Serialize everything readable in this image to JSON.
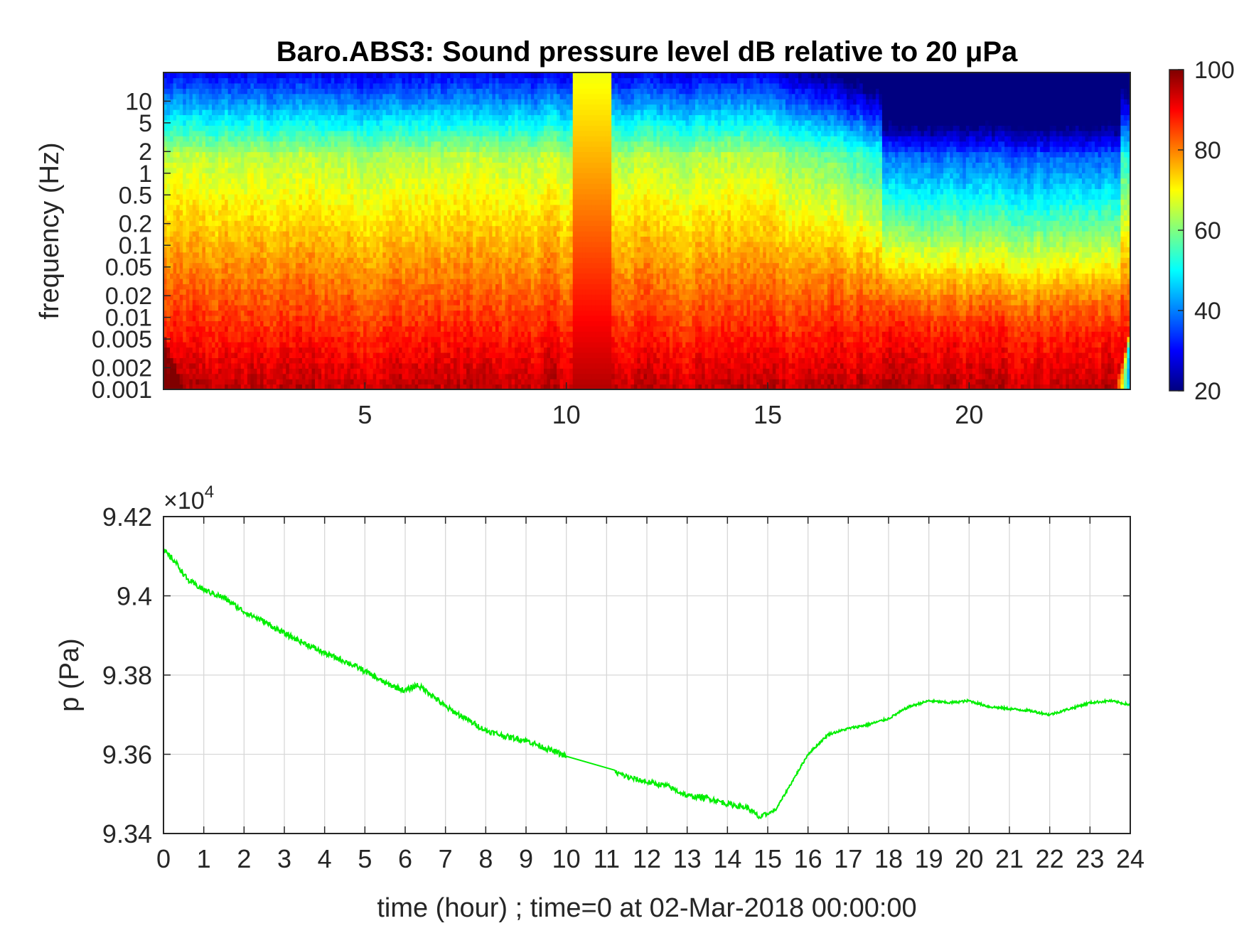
{
  "colors": {
    "pressure_line": "#00ee00",
    "axis": "#262626",
    "grid": "#d8d8d8",
    "colormap": "jet"
  },
  "chart_data": [
    {
      "type": "heatmap",
      "title": "Baro.ABS3: Sound pressure level dB relative to 20 μPa",
      "ylabel": "frequency (Hz)",
      "xlabel": "",
      "x_ticks": [
        "5",
        "10",
        "15",
        "20"
      ],
      "x_tick_values": [
        5,
        10,
        15,
        20
      ],
      "xlim": [
        0,
        24
      ],
      "y_scale": "log",
      "y_ticks": [
        "10",
        "5",
        "2",
        "1",
        "0.5",
        "0.2",
        "0.1",
        "0.05",
        "0.02",
        "0.01",
        "0.005",
        "0.002",
        "0.001"
      ],
      "y_tick_values": [
        10,
        5,
        2,
        1,
        0.5,
        0.2,
        0.1,
        0.05,
        0.02,
        0.01,
        0.005,
        0.002,
        0.001
      ],
      "ylim": [
        0.001,
        25
      ],
      "colorbar": {
        "ticks": [
          "20",
          "40",
          "60",
          "80",
          "100"
        ],
        "tick_values": [
          20,
          40,
          60,
          80,
          100
        ],
        "range": [
          20,
          100
        ]
      },
      "grid": false,
      "data_gap_hours": [
        10.15,
        11.15
      ]
    },
    {
      "type": "line",
      "ylabel": "p (Pa)",
      "xlabel": "time (hour) ; time=0 at 02-Mar-2018 00:00:00",
      "y_exponent_label": "×10",
      "y_exponent_power": "4",
      "xlim": [
        0,
        24
      ],
      "ylim": [
        93400,
        94200
      ],
      "x_ticks": [
        "0",
        "1",
        "2",
        "3",
        "4",
        "5",
        "6",
        "7",
        "8",
        "9",
        "10",
        "11",
        "12",
        "13",
        "14",
        "15",
        "16",
        "17",
        "18",
        "19",
        "20",
        "21",
        "22",
        "23",
        "24"
      ],
      "x_tick_values": [
        0,
        1,
        2,
        3,
        4,
        5,
        6,
        7,
        8,
        9,
        10,
        11,
        12,
        13,
        14,
        15,
        16,
        17,
        18,
        19,
        20,
        21,
        22,
        23,
        24
      ],
      "y_ticks": [
        "9.34",
        "9.36",
        "9.38",
        "9.4",
        "9.42"
      ],
      "y_tick_values": [
        93400,
        93600,
        93800,
        94000,
        94200
      ],
      "grid": true,
      "series": [
        {
          "x": [
            0,
            0.3,
            0.6,
            1.0,
            1.5,
            2.0,
            2.5,
            3.0,
            3.5,
            4.0,
            4.5,
            5.0,
            5.5,
            6.0,
            6.3,
            6.6,
            7.0,
            7.5,
            8.0,
            8.5,
            9.0,
            9.5,
            10.0,
            11.2,
            11.6,
            12.0,
            12.5,
            13.0,
            13.5,
            14.0,
            14.5,
            14.8,
            15.2,
            15.6,
            16.0,
            16.5,
            17.0,
            17.5,
            18.0,
            18.5,
            19.0,
            19.5,
            20.0,
            20.5,
            21.0,
            21.5,
            22.0,
            22.5,
            23.0,
            23.5,
            24.0
          ],
          "y": [
            94115,
            94085,
            94040,
            94015,
            93995,
            93960,
            93935,
            93905,
            93880,
            93855,
            93835,
            93810,
            93780,
            93760,
            93775,
            93755,
            93720,
            93690,
            93660,
            93645,
            93635,
            93615,
            93595,
            93555,
            93540,
            93530,
            93520,
            93495,
            93490,
            93475,
            93465,
            93440,
            93460,
            93530,
            93600,
            93650,
            93665,
            93675,
            93690,
            93720,
            93735,
            93730,
            93735,
            93720,
            93715,
            93710,
            93700,
            93715,
            93730,
            93735,
            93725
          ]
        }
      ]
    }
  ]
}
